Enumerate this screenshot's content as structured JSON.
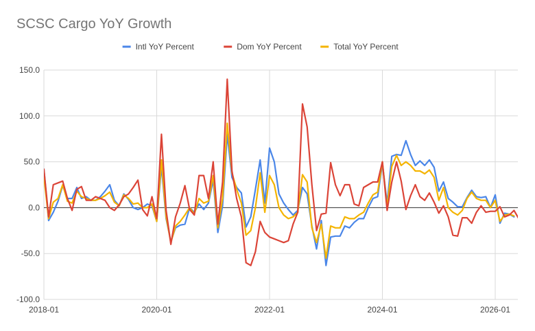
{
  "chart_data": {
    "type": "line",
    "title": "SCSC Cargo YoY Growth",
    "xlabel": "",
    "ylabel": "",
    "ylim": [
      -100,
      150
    ],
    "yticks": [
      -100,
      -50,
      0,
      50,
      100,
      150
    ],
    "ytick_labels": [
      "-100.0",
      "-50.0",
      "0.0",
      "50.0",
      "100.0",
      "150.0"
    ],
    "xticks": [
      "2018-01",
      "2020-01",
      "2022-01",
      "2024-01",
      "2026-01"
    ],
    "x_start": "2018-01",
    "grid": true,
    "legend_position": "top",
    "series": [
      {
        "name": "Intl YoY Percent",
        "color": "#4a86e8",
        "values": [
          42,
          -14,
          -5,
          7,
          24,
          10,
          10,
          22,
          10,
          12,
          8,
          8,
          12,
          18,
          25,
          8,
          2,
          15,
          9,
          0,
          -2,
          0,
          4,
          2,
          -15,
          45,
          -12,
          -37,
          -22,
          -19,
          -18,
          0,
          -5,
          4,
          -2,
          5,
          30,
          -27,
          2,
          80,
          33,
          22,
          16,
          -21,
          -10,
          20,
          52,
          5,
          65,
          50,
          15,
          5,
          -2,
          -8,
          -3,
          22,
          15,
          -20,
          -45,
          -14,
          -63,
          -32,
          -31,
          -31,
          -20,
          -22,
          -16,
          -12,
          -12,
          0,
          10,
          12,
          48,
          5,
          56,
          58,
          57,
          73,
          58,
          46,
          51,
          46,
          52,
          44,
          18,
          28,
          10,
          6,
          1,
          1,
          11,
          19,
          12,
          11,
          12,
          0,
          14,
          -17,
          -6,
          -7,
          -10
        ]
      },
      {
        "name": "Dom YoY Percent",
        "color": "#db4437",
        "values": [
          42,
          -10,
          25,
          27,
          29,
          10,
          -3,
          20,
          23,
          8,
          8,
          12,
          10,
          8,
          0,
          -3,
          3,
          12,
          15,
          22,
          30,
          -2,
          -9,
          12,
          -12,
          80,
          -3,
          -40,
          -10,
          5,
          24,
          -2,
          -8,
          35,
          35,
          10,
          50,
          -18,
          28,
          140,
          40,
          10,
          -10,
          -60,
          -63,
          -48,
          -15,
          -27,
          -32,
          -34,
          -36,
          -38,
          -36,
          -18,
          -5,
          113,
          88,
          25,
          -25,
          -7,
          -6,
          49,
          25,
          13,
          25,
          25,
          4,
          2,
          22,
          25,
          28,
          28,
          50,
          -3,
          28,
          50,
          29,
          -2,
          13,
          25,
          12,
          8,
          16,
          6,
          -6,
          2,
          -10,
          -30,
          -31,
          -11,
          -11,
          -17,
          -5,
          2,
          -5,
          -4,
          -4,
          1,
          -10,
          -8,
          -3,
          -12
        ]
      },
      {
        "name": "Total YoY Percent",
        "color": "#f4b400",
        "values": [
          34,
          -12,
          6,
          10,
          25,
          7,
          5,
          18,
          12,
          10,
          8,
          8,
          10,
          13,
          17,
          6,
          2,
          14,
          10,
          4,
          5,
          0,
          0,
          4,
          -15,
          52,
          -10,
          -38,
          -20,
          -15,
          -8,
          0,
          -7,
          10,
          5,
          7,
          35,
          -22,
          10,
          92,
          38,
          20,
          5,
          -30,
          -25,
          0,
          38,
          -5,
          35,
          25,
          0,
          -8,
          -12,
          -10,
          -5,
          36,
          28,
          -22,
          -38,
          -18,
          -55,
          -20,
          -22,
          -22,
          -10,
          -12,
          -12,
          -8,
          -5,
          5,
          14,
          17,
          50,
          0,
          45,
          57,
          46,
          50,
          46,
          40,
          40,
          37,
          41,
          33,
          8,
          22,
          0,
          -5,
          -8,
          -3,
          10,
          17,
          10,
          8,
          8,
          0,
          8,
          -15,
          -8,
          -7,
          -9
        ]
      }
    ]
  }
}
